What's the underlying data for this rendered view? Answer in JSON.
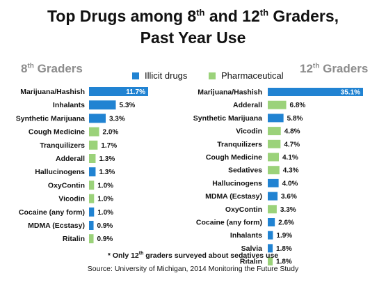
{
  "title": {
    "line1_a": "Top Drugs among  8",
    "line1_sup1": "th",
    "line1_b": " and 12",
    "line1_sup2": "th",
    "line1_c": " Graders,",
    "line2": "Past Year Use"
  },
  "legend": {
    "illicit": "Illicit drugs",
    "pharmaceutical": "Pharmaceutical"
  },
  "colors": {
    "illicit": "#2183d2",
    "pharmaceutical": "#9bd27a",
    "group_title": "#8c8c8c"
  },
  "footnote": {
    "before": "* Only 12",
    "sup": "th",
    "after": " graders surveyed about sedatives use"
  },
  "source": "Source: University of Michigan, 2014 Monitoring the Future Study",
  "chart_data": [
    {
      "type": "bar",
      "orientation": "horizontal",
      "group_title": "8",
      "group_title_sup": "th",
      "group_title_rest": " Graders",
      "categories": [
        "Marijuana/Hashish",
        "Inhalants",
        "Synthetic Marijuana",
        "Cough Medicine",
        "Tranquilizers",
        "Adderall",
        "Hallucinogens",
        "OxyContin",
        "Vicodin",
        "Cocaine (any form)",
        "MDMA (Ecstasy)",
        "Ritalin"
      ],
      "values": [
        11.7,
        5.3,
        3.3,
        2.0,
        1.7,
        1.3,
        1.3,
        1.0,
        1.0,
        1.0,
        0.9,
        0.9
      ],
      "value_labels": [
        "11.7%",
        "5.3%",
        "3.3%",
        "2.0%",
        "1.7%",
        "1.3%",
        "1.3%",
        "1.0%",
        "1.0%",
        "1.0%",
        "0.9%",
        "0.9%"
      ],
      "kinds": [
        "illicit",
        "illicit",
        "illicit",
        "pharmaceutical",
        "pharmaceutical",
        "pharmaceutical",
        "illicit",
        "pharmaceutical",
        "pharmaceutical",
        "illicit",
        "illicit",
        "pharmaceutical"
      ],
      "xlim": [
        0,
        11.7
      ],
      "unit": "%"
    },
    {
      "type": "bar",
      "orientation": "horizontal",
      "group_title": "12",
      "group_title_sup": "th",
      "group_title_rest": " Graders",
      "categories": [
        "Marijuana/Hashish",
        "Adderall",
        "Synthetic Marijuana",
        "Vicodin",
        "Tranquilizers",
        "Cough Medicine",
        "Sedatives",
        "Hallucinogens",
        "MDMA (Ecstasy)",
        "OxyContin",
        "Cocaine (any form)",
        "Inhalants",
        "Salvia",
        "Ritalin"
      ],
      "values": [
        35.1,
        6.8,
        5.8,
        4.8,
        4.7,
        4.1,
        4.3,
        4.0,
        3.6,
        3.3,
        2.6,
        1.9,
        1.8,
        1.8
      ],
      "value_labels": [
        "35.1%",
        "6.8%",
        "5.8%",
        "4.8%",
        "4.7%",
        "4.1%",
        "4.3%",
        "4.0%",
        "3.6%",
        "3.3%",
        "2.6%",
        "1.9%",
        "1.8%",
        "1.8%"
      ],
      "kinds": [
        "illicit",
        "pharmaceutical",
        "illicit",
        "pharmaceutical",
        "pharmaceutical",
        "pharmaceutical",
        "pharmaceutical",
        "illicit",
        "illicit",
        "pharmaceutical",
        "illicit",
        "illicit",
        "illicit",
        "pharmaceutical"
      ],
      "xlim": [
        0,
        35.1
      ],
      "unit": "%"
    }
  ]
}
